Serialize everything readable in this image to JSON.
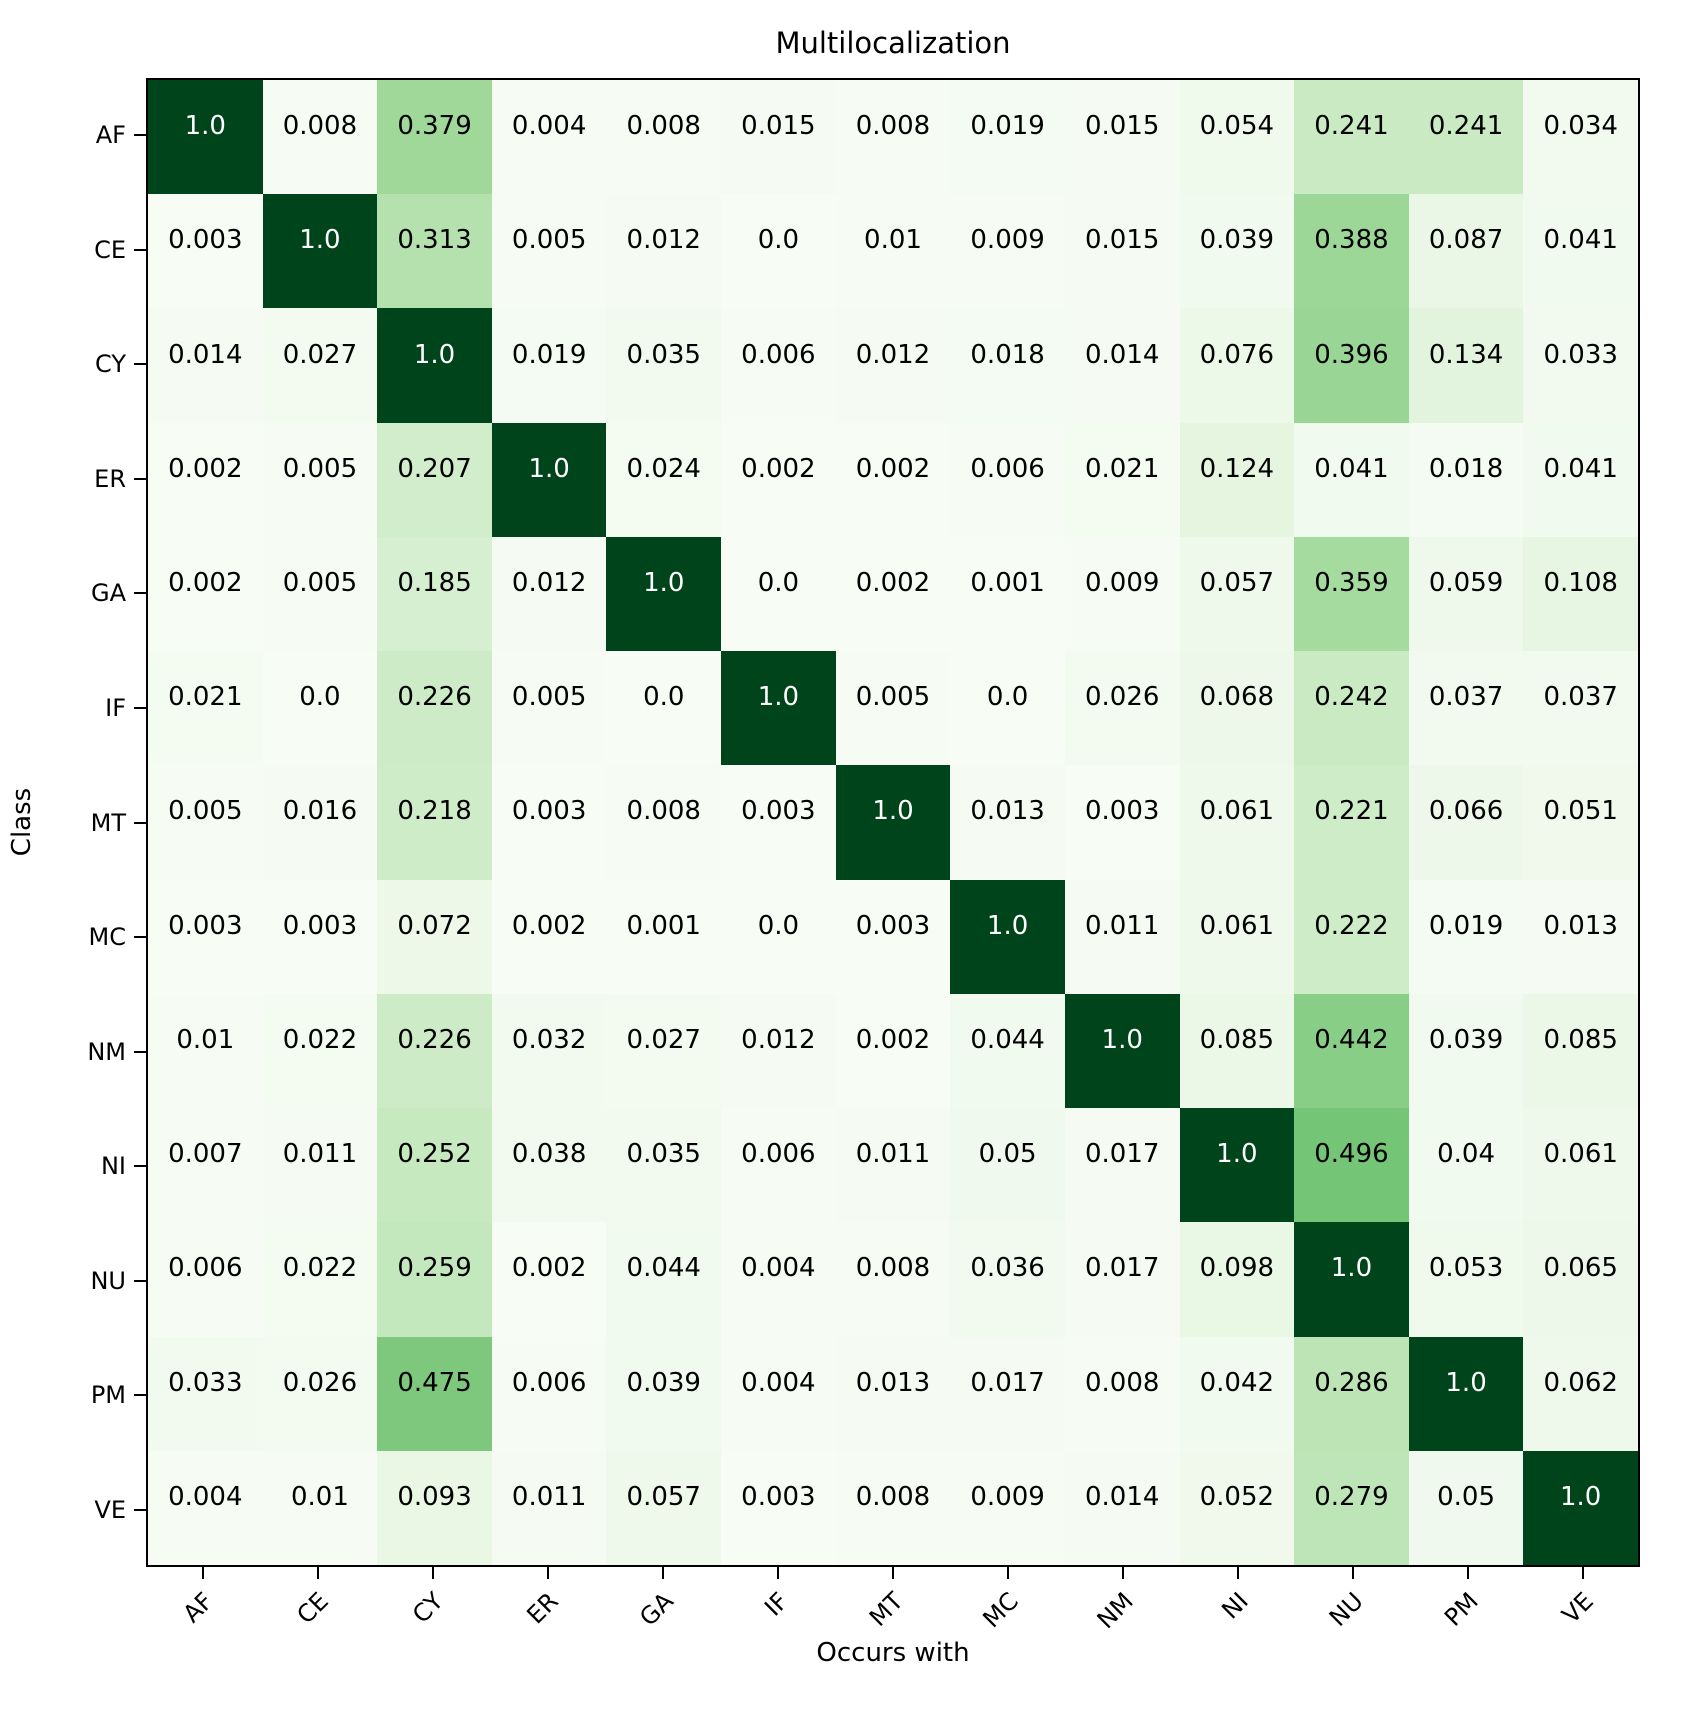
{
  "chart_data": {
    "type": "heatmap",
    "title": "Multilocalization",
    "xlabel": "Occurs with",
    "ylabel": "Class",
    "x_labels": [
      "AF",
      "CE",
      "CY",
      "ER",
      "GA",
      "IF",
      "MT",
      "MC",
      "NM",
      "NI",
      "NU",
      "PM",
      "VE"
    ],
    "y_labels": [
      "AF",
      "CE",
      "CY",
      "ER",
      "GA",
      "IF",
      "MT",
      "MC",
      "NM",
      "NI",
      "NU",
      "PM",
      "VE"
    ],
    "values": [
      [
        "1.0",
        "0.008",
        "0.379",
        "0.004",
        "0.008",
        "0.015",
        "0.008",
        "0.019",
        "0.015",
        "0.054",
        "0.241",
        "0.241",
        "0.034"
      ],
      [
        "0.003",
        "1.0",
        "0.313",
        "0.005",
        "0.012",
        "0.0",
        "0.01",
        "0.009",
        "0.015",
        "0.039",
        "0.388",
        "0.087",
        "0.041"
      ],
      [
        "0.014",
        "0.027",
        "1.0",
        "0.019",
        "0.035",
        "0.006",
        "0.012",
        "0.018",
        "0.014",
        "0.076",
        "0.396",
        "0.134",
        "0.033"
      ],
      [
        "0.002",
        "0.005",
        "0.207",
        "1.0",
        "0.024",
        "0.002",
        "0.002",
        "0.006",
        "0.021",
        "0.124",
        "0.041",
        "0.018",
        "0.041"
      ],
      [
        "0.002",
        "0.005",
        "0.185",
        "0.012",
        "1.0",
        "0.0",
        "0.002",
        "0.001",
        "0.009",
        "0.057",
        "0.359",
        "0.059",
        "0.108"
      ],
      [
        "0.021",
        "0.0",
        "0.226",
        "0.005",
        "0.0",
        "1.0",
        "0.005",
        "0.0",
        "0.026",
        "0.068",
        "0.242",
        "0.037",
        "0.037"
      ],
      [
        "0.005",
        "0.016",
        "0.218",
        "0.003",
        "0.008",
        "0.003",
        "1.0",
        "0.013",
        "0.003",
        "0.061",
        "0.221",
        "0.066",
        "0.051"
      ],
      [
        "0.003",
        "0.003",
        "0.072",
        "0.002",
        "0.001",
        "0.0",
        "0.003",
        "1.0",
        "0.011",
        "0.061",
        "0.222",
        "0.019",
        "0.013"
      ],
      [
        "0.01",
        "0.022",
        "0.226",
        "0.032",
        "0.027",
        "0.012",
        "0.002",
        "0.044",
        "1.0",
        "0.085",
        "0.442",
        "0.039",
        "0.085"
      ],
      [
        "0.007",
        "0.011",
        "0.252",
        "0.038",
        "0.035",
        "0.006",
        "0.011",
        "0.05",
        "0.017",
        "1.0",
        "0.496",
        "0.04",
        "0.061"
      ],
      [
        "0.006",
        "0.022",
        "0.259",
        "0.002",
        "0.044",
        "0.004",
        "0.008",
        "0.036",
        "0.017",
        "0.098",
        "1.0",
        "0.053",
        "0.065"
      ],
      [
        "0.033",
        "0.026",
        "0.475",
        "0.006",
        "0.039",
        "0.004",
        "0.013",
        "0.017",
        "0.008",
        "0.042",
        "0.286",
        "1.0",
        "0.062"
      ],
      [
        "0.004",
        "0.01",
        "0.093",
        "0.011",
        "0.057",
        "0.003",
        "0.008",
        "0.009",
        "0.014",
        "0.052",
        "0.279",
        "0.05",
        "1.0"
      ]
    ],
    "vmin": 0.0,
    "vmax": 1.0,
    "colormap": "Greens",
    "colorscale": [
      [
        0.0,
        "#f7fcf5"
      ],
      [
        0.125,
        "#e5f5e0"
      ],
      [
        0.25,
        "#c7e9c0"
      ],
      [
        0.375,
        "#a1d99b"
      ],
      [
        0.5,
        "#74c476"
      ],
      [
        0.625,
        "#41ab5d"
      ],
      [
        0.75,
        "#238b45"
      ],
      [
        0.875,
        "#006d2c"
      ],
      [
        1.0,
        "#00441b"
      ]
    ],
    "annotation_color_dark_bg": "#ffffff",
    "annotation_color_light_bg": "#000000",
    "annotation_light_text_threshold": 0.6,
    "grid": false,
    "legend": "none"
  }
}
